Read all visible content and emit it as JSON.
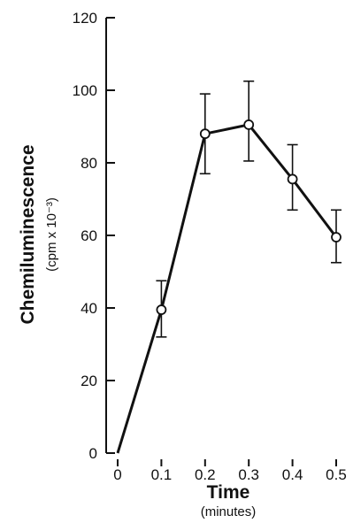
{
  "chart_data": {
    "type": "line",
    "title": "",
    "xlabel": "Time",
    "xlabel_sub": "(minutes)",
    "ylabel": "Chemiluminescence",
    "ylabel_sub": "(cpm x 10⁻³)",
    "x_ticks": [
      "0",
      "0.1",
      "0.2",
      "0.3",
      "0.4",
      "0.5"
    ],
    "y_ticks": [
      "0",
      "20",
      "40",
      "60",
      "80",
      "100",
      "120"
    ],
    "xlim": [
      0,
      0.5
    ],
    "ylim": [
      0,
      120
    ],
    "grid": false,
    "series": [
      {
        "x": [
          0,
          0.1,
          0.2,
          0.3,
          0.4,
          0.5
        ],
        "y": [
          0,
          39.5,
          88,
          90.5,
          75.5,
          59.5
        ],
        "err_low": [
          0,
          32,
          77,
          80.5,
          67,
          52.5
        ],
        "err_high": [
          0,
          47.5,
          99,
          102.5,
          85,
          67
        ]
      }
    ],
    "colors": {
      "line": "#111111",
      "marker_fill": "#ffffff"
    }
  }
}
